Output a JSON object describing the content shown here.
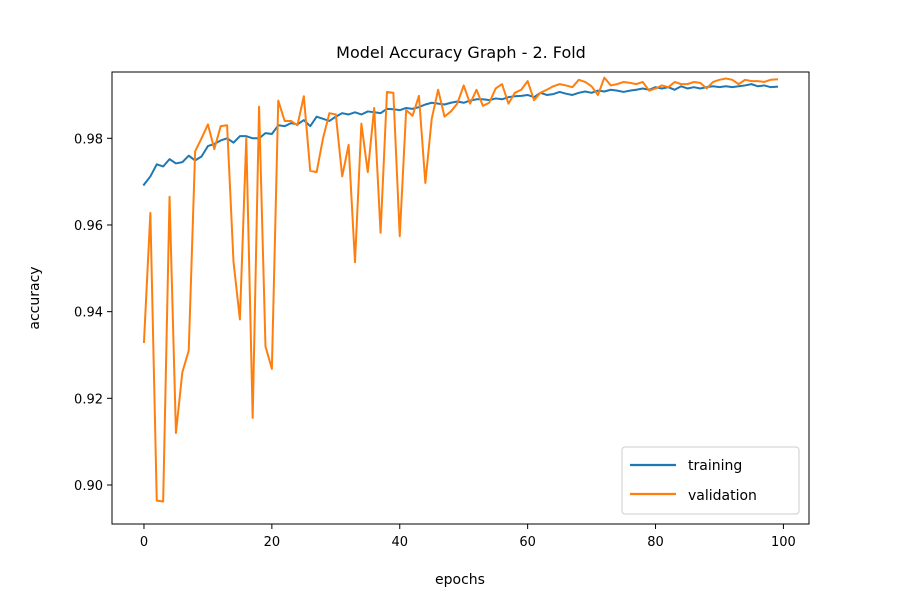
{
  "chart_data": {
    "type": "line",
    "title": "Model Accuracy Graph - 2. Fold",
    "xlabel": "epochs",
    "ylabel": "accuracy",
    "xlim": [
      -5,
      104
    ],
    "ylim": [
      0.891,
      0.9953
    ],
    "xticks": [
      0,
      20,
      40,
      60,
      80,
      100
    ],
    "yticks": [
      0.9,
      0.92,
      0.94,
      0.96,
      0.98
    ],
    "ytick_labels": [
      "0.90",
      "0.92",
      "0.94",
      "0.96",
      "0.98"
    ],
    "grid": false,
    "legend": {
      "position": "lower-right",
      "entries": [
        "training",
        "validation"
      ]
    },
    "series": [
      {
        "name": "training",
        "color": "#1f77b4",
        "values": [
          0.9693,
          0.9712,
          0.974,
          0.9735,
          0.9752,
          0.9742,
          0.9745,
          0.976,
          0.9749,
          0.9758,
          0.9782,
          0.9787,
          0.9795,
          0.98,
          0.979,
          0.9805,
          0.9805,
          0.98,
          0.98,
          0.9812,
          0.981,
          0.983,
          0.9828,
          0.9835,
          0.9832,
          0.9842,
          0.9828,
          0.985,
          0.9845,
          0.984,
          0.985,
          0.9858,
          0.9855,
          0.986,
          0.9855,
          0.9862,
          0.986,
          0.9858,
          0.9868,
          0.9867,
          0.9865,
          0.987,
          0.9868,
          0.9872,
          0.9878,
          0.9882,
          0.988,
          0.9878,
          0.9882,
          0.9885,
          0.9882,
          0.9887,
          0.989,
          0.989,
          0.9888,
          0.9892,
          0.989,
          0.9895,
          0.9897,
          0.9898,
          0.99,
          0.9895,
          0.9905,
          0.99,
          0.9902,
          0.9907,
          0.9903,
          0.99,
          0.9905,
          0.9908,
          0.9905,
          0.991,
          0.9908,
          0.9912,
          0.991,
          0.9907,
          0.991,
          0.9912,
          0.9915,
          0.9912,
          0.9918,
          0.9915,
          0.9918,
          0.9912,
          0.992,
          0.9915,
          0.9918,
          0.9915,
          0.9918,
          0.992,
          0.9918,
          0.992,
          0.9918,
          0.992,
          0.9922,
          0.9925,
          0.992,
          0.9922,
          0.9918,
          0.9919
        ]
      },
      {
        "name": "validation",
        "color": "#ff7f0e",
        "values": [
          0.933,
          0.9628,
          0.8964,
          0.8962,
          0.9665,
          0.912,
          0.926,
          0.931,
          0.977,
          0.98,
          0.9832,
          0.9775,
          0.9828,
          0.983,
          0.9515,
          0.9382,
          0.98,
          0.9155,
          0.9873,
          0.932,
          0.9268,
          0.9887,
          0.984,
          0.984,
          0.983,
          0.9897,
          0.9725,
          0.9722,
          0.98,
          0.9858,
          0.9855,
          0.9712,
          0.9785,
          0.9514,
          0.9834,
          0.9722,
          0.987,
          0.9582,
          0.9907,
          0.9905,
          0.9574,
          0.9865,
          0.9852,
          0.9898,
          0.9697,
          0.9845,
          0.9912,
          0.985,
          0.9862,
          0.988,
          0.9922,
          0.988,
          0.9912,
          0.9875,
          0.9882,
          0.9915,
          0.9925,
          0.988,
          0.9905,
          0.9912,
          0.9932,
          0.9888,
          0.9905,
          0.9912,
          0.992,
          0.9925,
          0.9922,
          0.9918,
          0.9935,
          0.993,
          0.992,
          0.99,
          0.994,
          0.9922,
          0.9925,
          0.993,
          0.9928,
          0.9925,
          0.993,
          0.991,
          0.9915,
          0.9922,
          0.9918,
          0.993,
          0.9925,
          0.9925,
          0.993,
          0.9928,
          0.9915,
          0.993,
          0.9935,
          0.9938,
          0.9935,
          0.9925,
          0.9935,
          0.9932,
          0.9932,
          0.993,
          0.9935,
          0.9936
        ]
      }
    ]
  }
}
